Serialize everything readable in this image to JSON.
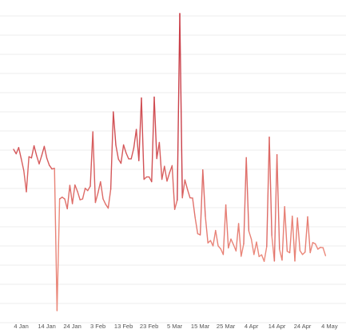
{
  "chart_data": {
    "type": "line",
    "title": "",
    "xlabel": "",
    "ylabel": "",
    "grid": true,
    "legend": "none",
    "x_tick_labels": [
      "4 Jan",
      "14 Jan",
      "24 Jan",
      "3 Feb",
      "13 Feb",
      "23 Feb",
      "5 Mar",
      "15 Mar",
      "25 Mar",
      "4 Apr",
      "14 Apr",
      "24 Apr",
      "4 May"
    ],
    "x_start": "2021-01-01",
    "x_step_days": 1,
    "ylim": [
      0,
      100
    ],
    "color_scale": {
      "low": "#f8a58e",
      "high": "#b5132b"
    },
    "values": [
      54.3,
      52.8,
      54.9,
      51.1,
      47.1,
      40.0,
      51.8,
      51.4,
      55.5,
      52.2,
      49.4,
      52.2,
      55.3,
      51.3,
      48.9,
      47.7,
      47.9,
      0.0,
      37.6,
      38.2,
      37.6,
      34.3,
      42.2,
      36.0,
      42.3,
      40.1,
      37.3,
      37.6,
      41.2,
      40.4,
      41.9,
      60.2,
      36.4,
      39.6,
      43.4,
      37.6,
      35.8,
      34.5,
      40.9,
      66.9,
      55.7,
      51.0,
      49.6,
      55.8,
      53.1,
      51.1,
      51.1,
      54.7,
      61.0,
      50.5,
      71.6,
      44.2,
      45.0,
      45.0,
      43.4,
      71.9,
      51.2,
      56.6,
      44.2,
      48.6,
      43.6,
      46.4,
      48.8,
      34.1,
      37.2,
      100.0,
      38.0,
      44.0,
      40.8,
      38.0,
      37.9,
      31.3,
      25.9,
      25.5,
      47.4,
      31.7,
      22.8,
      23.6,
      21.8,
      27.0,
      21.8,
      20.8,
      18.9,
      35.6,
      21.1,
      24.1,
      22.2,
      20.1,
      29.3,
      18.3,
      22.5,
      51.5,
      26.8,
      24.0,
      18.9,
      23.1,
      18.2,
      18.8,
      16.6,
      21.6,
      58.4,
      25.1,
      16.7,
      52.5,
      20.6,
      17.0,
      35.0,
      20.0,
      19.5,
      31.8,
      16.7,
      31.2,
      20.2,
      18.9,
      19.7,
      31.6,
      19.5,
      22.9,
      22.5,
      20.7,
      21.3,
      21.2,
      18.5
    ]
  }
}
